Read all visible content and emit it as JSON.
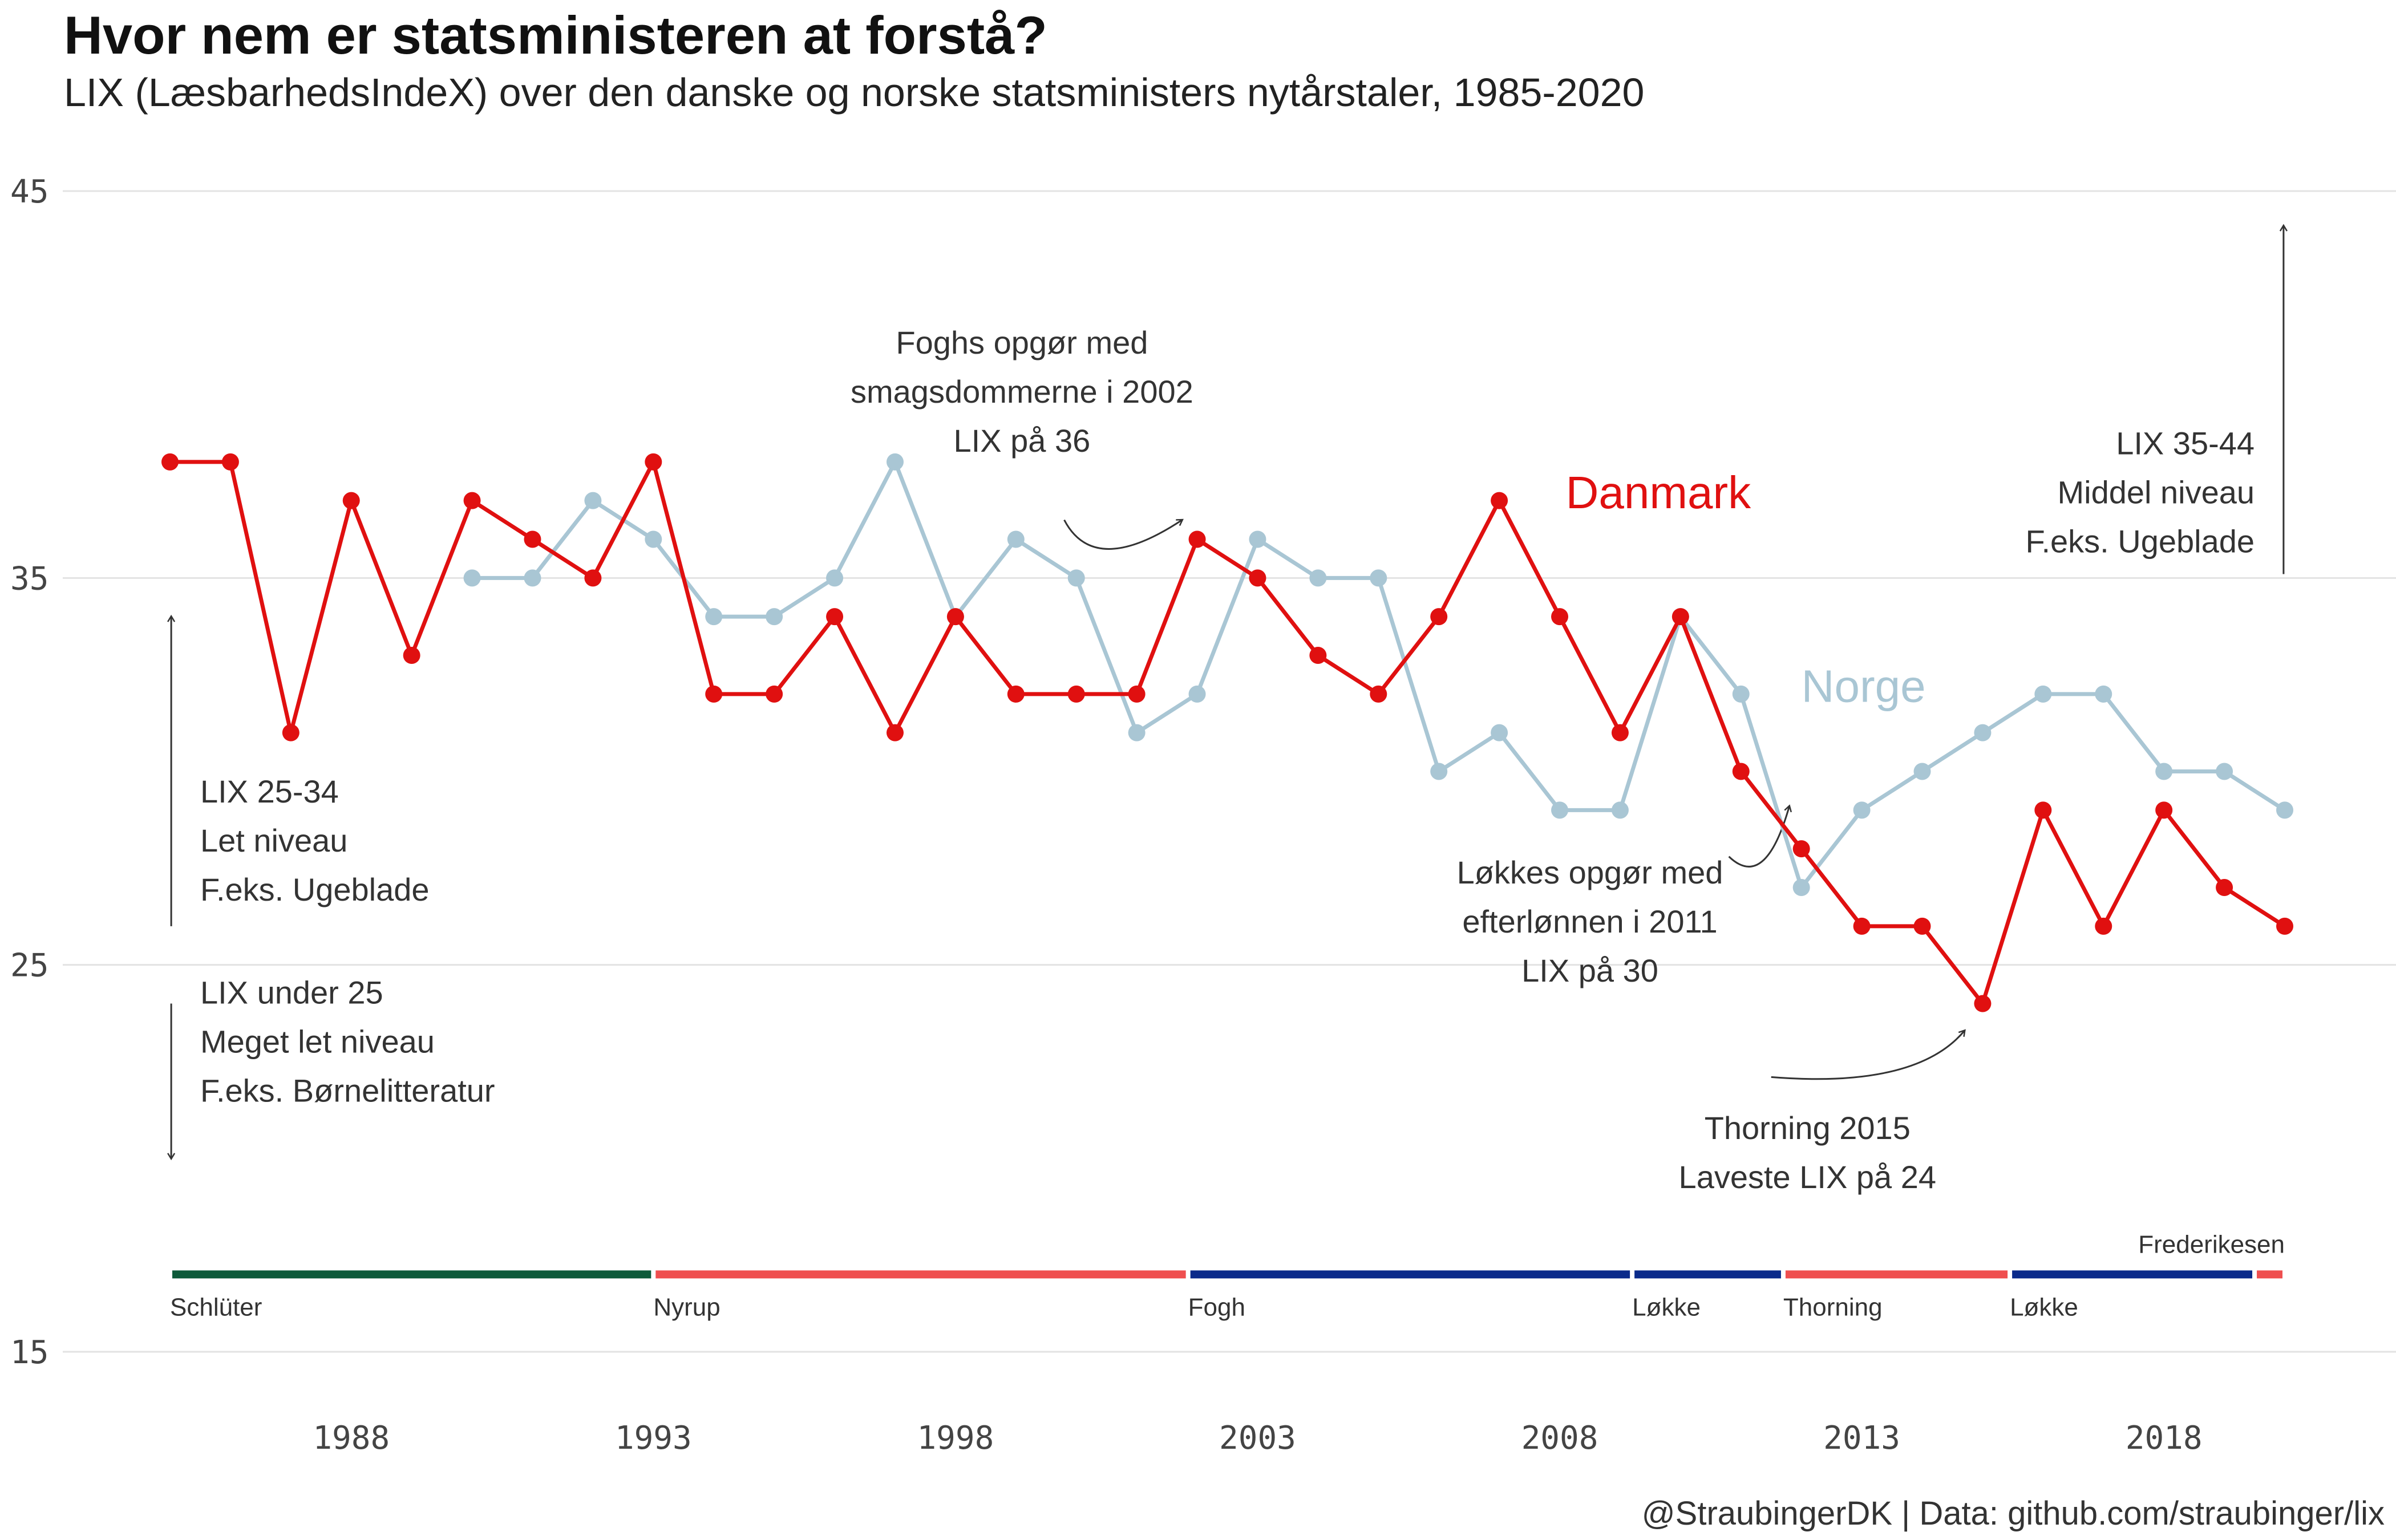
{
  "title": "Hvor nem er statsministeren at forstå?",
  "subtitle": "LIX (LæsbarhedsIndeX) over den danske og norske statsministers nytårstaler, 1985-2020",
  "caption": "@StraubingerDK | Data: github.com/straubinger/lix",
  "colors": {
    "danmark": "#e01010",
    "norge": "#a9c6d4",
    "grid": "#e3e3e3",
    "venstre": "#0a2a8a",
    "socialdemokratiet": "#ef4f4f",
    "konservative": "#0d5a3a"
  },
  "chart_data": {
    "type": "line",
    "title": "Hvor nem er statsministeren at forstå?",
    "xlabel": "",
    "ylabel": "",
    "xlim": [
      1985,
      2020
    ],
    "ylim": [
      15,
      45
    ],
    "x_ticks": [
      1988,
      1993,
      1998,
      2003,
      2008,
      2013,
      2018
    ],
    "y_ticks": [
      15,
      25,
      35,
      45
    ],
    "grid": true,
    "series": [
      {
        "name": "Danmark",
        "color": "#e01010",
        "points": [
          [
            1985,
            38
          ],
          [
            1986,
            38
          ],
          [
            1987,
            31
          ],
          [
            1988,
            37
          ],
          [
            1989,
            33
          ],
          [
            1990,
            37
          ],
          [
            1991,
            36
          ],
          [
            1992,
            35
          ],
          [
            1993,
            38
          ],
          [
            1994,
            32
          ],
          [
            1995,
            32
          ],
          [
            1996,
            34
          ],
          [
            1997,
            31
          ],
          [
            1998,
            34
          ],
          [
            1999,
            32
          ],
          [
            2000,
            32
          ],
          [
            2001,
            32
          ],
          [
            2002,
            36
          ],
          [
            2003,
            35
          ],
          [
            2004,
            33
          ],
          [
            2005,
            32
          ],
          [
            2006,
            34
          ],
          [
            2007,
            37
          ],
          [
            2008,
            34
          ],
          [
            2009,
            31
          ],
          [
            2010,
            34
          ],
          [
            2011,
            30
          ],
          [
            2012,
            28
          ],
          [
            2013,
            26
          ],
          [
            2014,
            26
          ],
          [
            2015,
            24
          ],
          [
            2016,
            29
          ],
          [
            2017,
            26
          ],
          [
            2018,
            29
          ],
          [
            2019,
            27
          ],
          [
            2020,
            26
          ]
        ]
      },
      {
        "name": "Norge",
        "color": "#a9c6d4",
        "points": [
          [
            1990,
            35
          ],
          [
            1991,
            35
          ],
          [
            1992,
            37
          ],
          [
            1993,
            36
          ],
          [
            1994,
            34
          ],
          [
            1995,
            34
          ],
          [
            1996,
            35
          ],
          [
            1997,
            38
          ],
          [
            1998,
            34
          ],
          [
            1999,
            36
          ],
          [
            2000,
            35
          ],
          [
            2001,
            31
          ],
          [
            2002,
            32
          ],
          [
            2003,
            36
          ],
          [
            2004,
            35
          ],
          [
            2005,
            35
          ],
          [
            2006,
            30
          ],
          [
            2007,
            31
          ],
          [
            2008,
            29
          ],
          [
            2009,
            29
          ],
          [
            2010,
            34
          ],
          [
            2011,
            32
          ],
          [
            2012,
            27
          ],
          [
            2013,
            29
          ],
          [
            2014,
            30
          ],
          [
            2015,
            31
          ],
          [
            2016,
            32
          ],
          [
            2017,
            32
          ],
          [
            2018,
            30
          ],
          [
            2019,
            30
          ],
          [
            2020,
            29
          ]
        ]
      }
    ],
    "series_labels": [
      {
        "text": "Danmark",
        "x": 2008.1,
        "y": 36.8
      },
      {
        "text": "Norge",
        "x": 2012,
        "y": 31.8
      }
    ],
    "prime_minister_level": 17,
    "prime_ministers": [
      {
        "name": "Schlüter",
        "start": 1985,
        "end": 1993,
        "party": "konservative",
        "label_pos": "below"
      },
      {
        "name": "Nyrup",
        "start": 1993,
        "end": 2001.85,
        "party": "socialdemokratiet",
        "label_pos": "below"
      },
      {
        "name": "Fogh",
        "start": 2001.85,
        "end": 2009.2,
        "party": "venstre",
        "label_pos": "below"
      },
      {
        "name": "Løkke",
        "start": 2009.2,
        "end": 2011.7,
        "party": "venstre",
        "label_pos": "below"
      },
      {
        "name": "Thorning",
        "start": 2011.7,
        "end": 2015.45,
        "party": "socialdemokratiet",
        "label_pos": "below"
      },
      {
        "name": "Løkke",
        "start": 2015.45,
        "end": 2019.5,
        "party": "venstre",
        "label_pos": "below"
      },
      {
        "name": "Frederikesen",
        "start": 2019.5,
        "end": 2020,
        "party": "socialdemokratiet",
        "label_pos": "above"
      }
    ],
    "annotations": [
      {
        "lines": [
          "Foghs opgør med",
          "smagsdommerne i 2002",
          "LIX på 36"
        ],
        "anchor": "middle",
        "x": 1999.1,
        "y": 40.8
      },
      {
        "lines": [
          "Løkkes opgør med",
          "efterlønnen i 2011",
          "LIX på 30"
        ],
        "anchor": "middle",
        "x": 2008.5,
        "y": 27.1
      },
      {
        "lines": [
          "Thorning 2015",
          "Laveste LIX på 24"
        ],
        "anchor": "middle",
        "x": 2012.1,
        "y": 20.5
      },
      {
        "lines": [
          "LIX 35-44",
          "Middel niveau",
          "F.eks. Ugeblade"
        ],
        "anchor": "end",
        "x": 2019.5,
        "y": 38.2
      },
      {
        "lines": [
          "LIX 25-34",
          "Let niveau",
          "F.eks. Ugeblade"
        ],
        "anchor": "start",
        "x": 1985.5,
        "y": 29.2
      },
      {
        "lines": [
          "LIX under 25",
          "Meget let niveau",
          "F.eks. Børnelitteratur"
        ],
        "anchor": "start",
        "x": 1985.5,
        "y": 24.0
      }
    ],
    "level_arrows": [
      {
        "x": 2019.98,
        "from": 35.1,
        "to": 44.1
      },
      {
        "x": 1985.02,
        "from": 26.0,
        "to": 34.0
      },
      {
        "x": 1985.02,
        "from": 24.0,
        "to": 20.0
      }
    ],
    "curved_arrows": [
      {
        "from": [
          1999.8,
          36.5
        ],
        "ctrl": [
          2000.3,
          35.0
        ],
        "to": [
          2001.75,
          36.5
        ]
      },
      {
        "from": [
          2010.8,
          27.8
        ],
        "ctrl": [
          2011.4,
          26.9
        ],
        "to": [
          2011.8,
          29.1
        ]
      },
      {
        "from": [
          2011.5,
          22.1
        ],
        "ctrl": [
          2013.9,
          21.8
        ],
        "to": [
          2014.7,
          23.3
        ]
      }
    ]
  }
}
